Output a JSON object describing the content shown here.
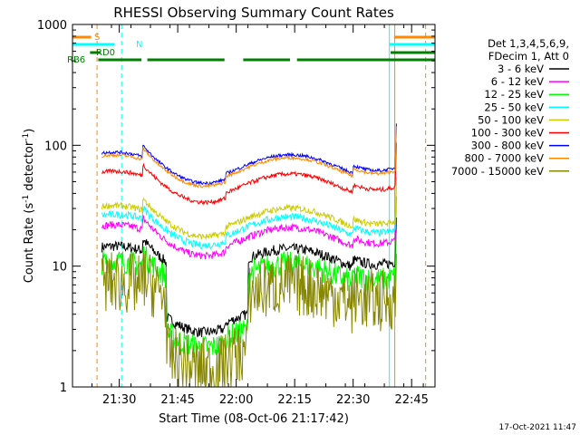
{
  "chart_data": {
    "type": "line",
    "title": "RHESSI Observing Summary Count Rates",
    "xlabel": "Start Time (08-Oct-06 21:17:42)",
    "ylabel": "Count Rate (s",
    "ylabel_sup1": "-1",
    "ylabel_mid": " detector",
    "ylabel_sup2": "-1",
    "ylabel_end": ")",
    "y_scale": "log",
    "ylim": [
      1,
      1000
    ],
    "xlim_minutes": [
      21.3,
      22.85
    ],
    "x_ticks": [
      {
        "t": 21.5,
        "label": "21:30"
      },
      {
        "t": 21.75,
        "label": "21:45"
      },
      {
        "t": 22.0,
        "label": "22:00"
      },
      {
        "t": 22.25,
        "label": "22:15"
      },
      {
        "t": 22.5,
        "label": "22:30"
      },
      {
        "t": 22.75,
        "label": "22:45"
      }
    ],
    "y_ticks": [
      {
        "v": 1,
        "label": "1"
      },
      {
        "v": 10,
        "label": "10"
      },
      {
        "v": 100,
        "label": "100"
      },
      {
        "v": 1000,
        "label": "1000"
      }
    ],
    "legend_header": [
      "Det 1,3,4,5,6,9,",
      "FDecim 1, Att 0"
    ],
    "series": [
      {
        "name": "3 - 6 keV",
        "color": "#000000",
        "level": 12,
        "noise": 0.1
      },
      {
        "name": "6 - 12 keV",
        "color": "#ff00ff",
        "level": 18,
        "noise": 0.07
      },
      {
        "name": "12 - 25 keV",
        "color": "#00ff00",
        "level": 9,
        "noise": 0.12
      },
      {
        "name": "25 - 50 keV",
        "color": "#00ffff",
        "level": 22,
        "noise": 0.07
      },
      {
        "name": "50 - 100 keV",
        "color": "#cccc00",
        "level": 26,
        "noise": 0.06
      },
      {
        "name": "100 - 300 keV",
        "color": "#ff0000",
        "level": 50,
        "noise": 0.04
      },
      {
        "name": "300 - 800 keV",
        "color": "#0000ff",
        "level": 72,
        "noise": 0.03
      },
      {
        "name": "800 - 7000 keV",
        "color": "#ff8800",
        "level": 68,
        "noise": 0.03
      },
      {
        "name": "7000 - 15000 keV",
        "color": "#888800",
        "level": 6,
        "noise": 0.3
      }
    ],
    "flag_bars": [
      {
        "label": "S",
        "color": "#ff8800",
        "segments": [
          [
            21.3,
            21.38
          ],
          [
            22.675,
            22.85
          ]
        ]
      },
      {
        "label": "N",
        "color": "#00ffff",
        "segments": [
          [
            21.3,
            21.48
          ],
          [
            22.655,
            22.85
          ]
        ]
      },
      {
        "label": "RD0",
        "color": "#008000",
        "segments": [
          [
            21.375,
            21.42
          ],
          [
            22.66,
            22.85
          ]
        ]
      },
      {
        "label": "RB6",
        "color": "#008000",
        "segments": [
          [
            21.41,
            21.595
          ],
          [
            21.62,
            21.95
          ],
          [
            22.03,
            22.23
          ],
          [
            22.26,
            22.85
          ]
        ]
      }
    ],
    "vertical_lines": [
      {
        "t": 21.3,
        "color": "#00ffff",
        "style": "solid"
      },
      {
        "t": 21.405,
        "color": "#ff8800",
        "style": "dashed"
      },
      {
        "t": 21.51,
        "color": "#00ffff",
        "style": "dashed"
      },
      {
        "t": 22.655,
        "color": "#00ffff",
        "style": "solid"
      },
      {
        "t": 22.678,
        "color": "#ff8800",
        "style": "solid"
      },
      {
        "t": 22.81,
        "color": "#ff8800",
        "style": "dashed"
      }
    ]
  },
  "timestamp": "17-Oct-2021 11:47"
}
